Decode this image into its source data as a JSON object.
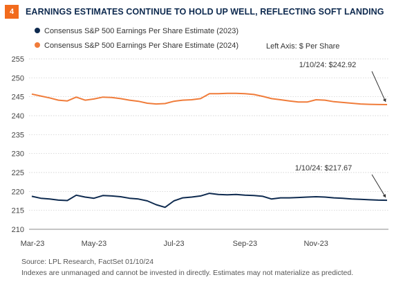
{
  "header": {
    "figure_number": "4",
    "title": "EARNINGS ESTIMATES CONTINUE TO HOLD UP WELL, REFLECTING SOFT LANDING"
  },
  "footer": {
    "source": "Source: LPL Research, FactSet  01/10/24",
    "disclaimer": "Indexes are unmanaged and cannot be invested in directly. Estimates may not materialize as predicted."
  },
  "colors": {
    "navy": "#0e2a4f",
    "orange": "#f07c3a",
    "badge": "#f26b1d"
  },
  "chart_data": {
    "type": "line",
    "axis_note": "Left Axis: $ Per Share",
    "ylim": [
      210,
      255
    ],
    "yticks": [
      210,
      215,
      220,
      225,
      230,
      235,
      240,
      245,
      250,
      255
    ],
    "xticks": [
      "Mar-23",
      "May-23",
      "Jul-23",
      "Sep-23",
      "Nov-23"
    ],
    "x": [
      "Mar-23",
      "Mar-23",
      "Mar-23",
      "Apr-23",
      "Apr-23",
      "Apr-23",
      "Apr-23",
      "May-23",
      "May-23",
      "May-23",
      "May-23",
      "Jun-23",
      "Jun-23",
      "Jun-23",
      "Jun-23",
      "Jun-23",
      "Jul-23",
      "Jul-23",
      "Jul-23",
      "Jul-23",
      "Aug-23",
      "Aug-23",
      "Aug-23",
      "Aug-23",
      "Sep-23",
      "Sep-23",
      "Sep-23",
      "Sep-23",
      "Oct-23",
      "Oct-23",
      "Oct-23",
      "Oct-23",
      "Nov-23",
      "Nov-23",
      "Nov-23",
      "Nov-23",
      "Dec-23",
      "Dec-23",
      "Dec-23",
      "Dec-23",
      "Jan-24"
    ],
    "series": [
      {
        "name": "Consensus S&P 500 Earnings Per Share Estimate (2023)",
        "color": "#0e2a4f",
        "values": [
          218.7,
          218.2,
          218.0,
          217.7,
          217.6,
          219.0,
          218.5,
          218.2,
          218.9,
          218.8,
          218.6,
          218.2,
          218.0,
          217.5,
          216.5,
          215.8,
          217.5,
          218.3,
          218.5,
          218.8,
          219.5,
          219.2,
          219.1,
          219.2,
          219.0,
          218.9,
          218.7,
          218.0,
          218.3,
          218.3,
          218.4,
          218.5,
          218.6,
          218.5,
          218.3,
          218.2,
          218.0,
          217.9,
          217.8,
          217.7,
          217.67
        ],
        "annotation": "1/10/24: $217.67"
      },
      {
        "name": "Consensus S&P 500 Earnings Per Share Estimate (2024)",
        "color": "#f07c3a",
        "values": [
          245.7,
          245.2,
          244.7,
          244.1,
          243.9,
          244.9,
          244.1,
          244.4,
          244.9,
          244.8,
          244.5,
          244.1,
          243.8,
          243.3,
          243.1,
          243.2,
          243.8,
          244.1,
          244.2,
          244.5,
          245.8,
          245.8,
          245.9,
          245.9,
          245.8,
          245.6,
          245.1,
          244.5,
          244.2,
          243.9,
          243.6,
          243.6,
          244.2,
          244.1,
          243.7,
          243.5,
          243.3,
          243.1,
          243.0,
          242.95,
          242.92
        ],
        "annotation": "1/10/24: $242.92"
      }
    ]
  }
}
